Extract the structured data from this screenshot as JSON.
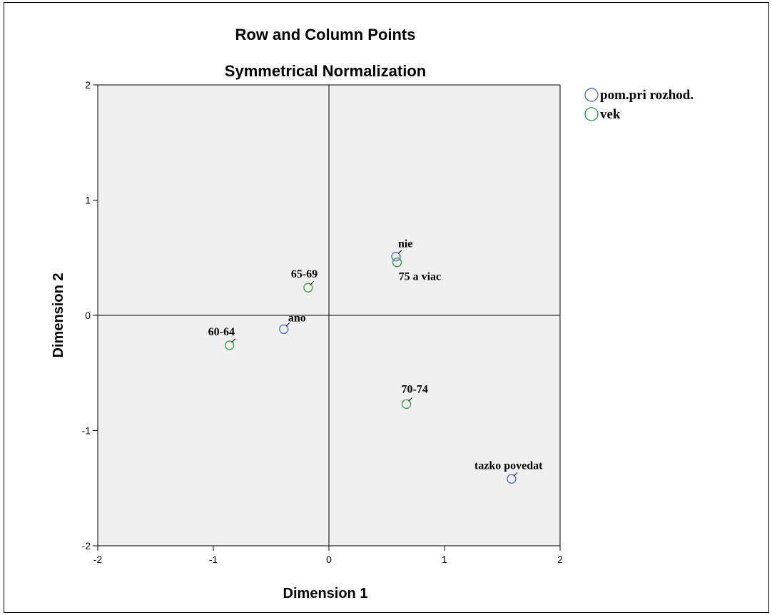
{
  "chart_data": {
    "type": "scatter",
    "title": "Row and Column Points",
    "subtitle": "Symmetrical Normalization",
    "xlabel": "Dimension 1",
    "ylabel": "Dimension 2",
    "xlim": [
      -2,
      2
    ],
    "ylim": [
      -2,
      2
    ],
    "x_ticks": [
      "-2",
      "-1",
      "0",
      "1",
      "2"
    ],
    "y_ticks": [
      "2",
      "1",
      "0",
      "-1",
      "-2"
    ],
    "grid": false,
    "reference_lines": [
      0,
      0
    ],
    "legend_position": "top-right",
    "series": [
      {
        "name": "pom.pri rozhod.",
        "color": "#5a6fc9",
        "points": [
          {
            "label": "nie",
            "x": 0.58,
            "y": 0.51
          },
          {
            "label": "ano",
            "x": -0.39,
            "y": -0.12
          },
          {
            "label": "tazko povedat",
            "x": 1.58,
            "y": -1.42
          }
        ]
      },
      {
        "name": "vek",
        "color": "#3aa15a",
        "points": [
          {
            "label": "75 a viac",
            "x": 0.59,
            "y": 0.46
          },
          {
            "label": "65-69",
            "x": -0.18,
            "y": 0.24
          },
          {
            "label": "60-64",
            "x": -0.86,
            "y": -0.26
          },
          {
            "label": "70-74",
            "x": 0.67,
            "y": -0.77
          }
        ]
      }
    ]
  }
}
